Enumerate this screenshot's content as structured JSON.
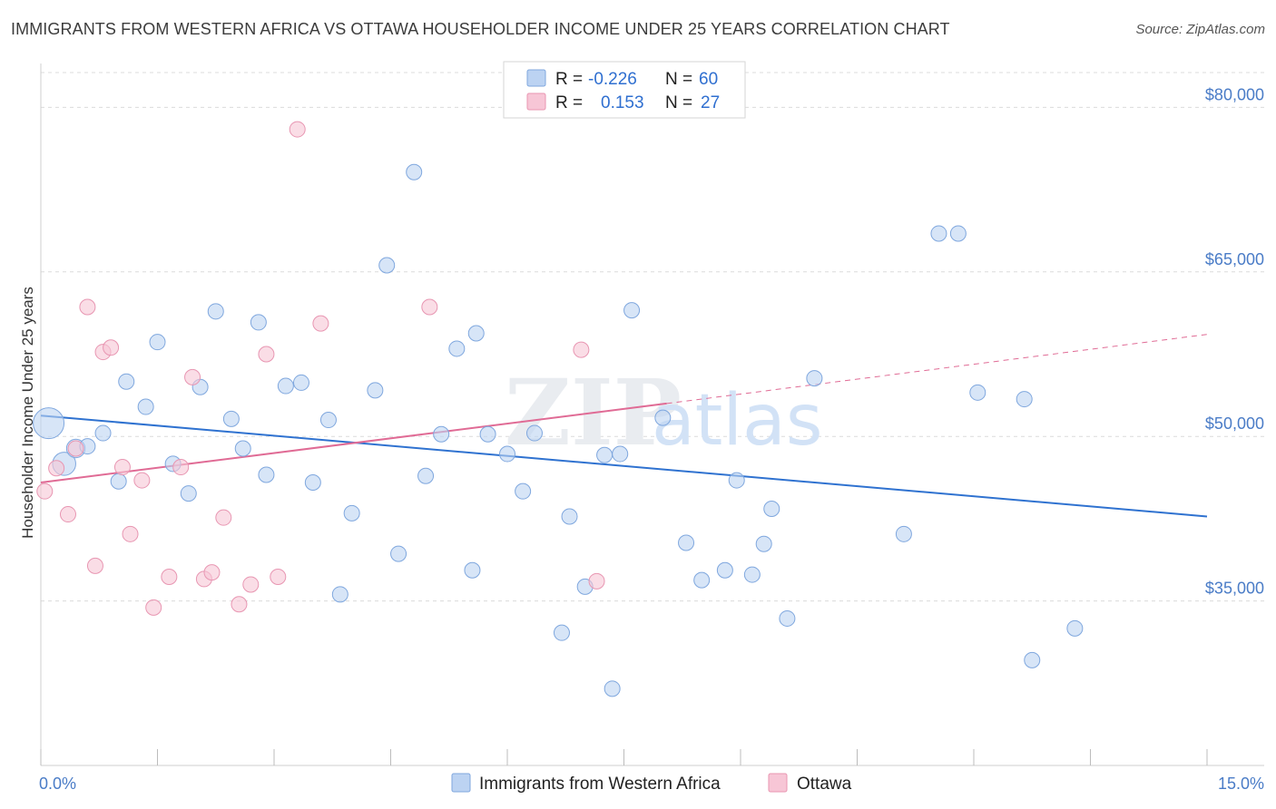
{
  "header": {
    "title": "IMMIGRANTS FROM WESTERN AFRICA VS OTTAWA HOUSEHOLDER INCOME UNDER 25 YEARS CORRELATION CHART",
    "source": "Source: ZipAtlas.com"
  },
  "watermark": {
    "zip": "ZIP",
    "atlas": "atlas"
  },
  "colors": {
    "blue_fill": "#bcd3f2",
    "blue_stroke": "#7fa7de",
    "blue_line": "#2f72d0",
    "pink_fill": "#f7c6d6",
    "pink_stroke": "#e896b2",
    "pink_line": "#e06b95",
    "grid": "#dcdcdc",
    "axis_text": "#4a7cc7"
  },
  "legend": {
    "r_label": "R =",
    "n_label": "N =",
    "rows": [
      {
        "r": "-0.226",
        "n": "60"
      },
      {
        "r": "0.153",
        "n": "27"
      }
    ]
  },
  "chart_data": {
    "type": "scatter",
    "title": "IMMIGRANTS FROM WESTERN AFRICA VS OTTAWA HOUSEHOLDER INCOME UNDER 25 YEARS CORRELATION CHART",
    "xlabel": "",
    "ylabel": "Householder Income Under 25 years",
    "xlim": [
      0,
      15
    ],
    "ylim": [
      20000,
      84000
    ],
    "x_tick_labels": [
      "0.0%",
      "15.0%"
    ],
    "y_ticks": [
      35000,
      50000,
      65000,
      80000
    ],
    "y_tick_labels": [
      "$35,000",
      "$50,000",
      "$65,000",
      "$80,000"
    ],
    "grid": true,
    "legend_position": "top-center",
    "series": [
      {
        "name": "Immigrants from Western Africa",
        "color": "#bcd3f2",
        "r": -0.226,
        "n": 60,
        "trend": {
          "x": [
            0,
            15
          ],
          "y": [
            51900,
            42700
          ]
        },
        "points": [
          [
            0.1,
            51200,
            2
          ],
          [
            0.3,
            47500,
            1.5
          ],
          [
            0.45,
            48900,
            1.2
          ],
          [
            0.6,
            49100,
            1
          ],
          [
            0.8,
            50300,
            1
          ],
          [
            1.0,
            45900,
            1
          ],
          [
            1.1,
            55000,
            1
          ],
          [
            1.35,
            52700,
            1
          ],
          [
            1.5,
            58600,
            1
          ],
          [
            1.7,
            47500,
            1
          ],
          [
            1.9,
            44800,
            1
          ],
          [
            2.05,
            54500,
            1
          ],
          [
            2.25,
            61400,
            1
          ],
          [
            2.45,
            51600,
            1
          ],
          [
            2.6,
            48900,
            1
          ],
          [
            2.8,
            60400,
            1
          ],
          [
            2.9,
            46500,
            1
          ],
          [
            3.15,
            54600,
            1
          ],
          [
            3.35,
            54900,
            1
          ],
          [
            3.5,
            45800,
            1
          ],
          [
            3.7,
            51500,
            1
          ],
          [
            3.85,
            35600,
            1
          ],
          [
            4.0,
            43000,
            1
          ],
          [
            4.3,
            54200,
            1
          ],
          [
            4.45,
            65600,
            1
          ],
          [
            4.6,
            39300,
            1
          ],
          [
            4.8,
            74100,
            1
          ],
          [
            4.95,
            46400,
            1
          ],
          [
            5.15,
            50200,
            1
          ],
          [
            5.35,
            58000,
            1
          ],
          [
            5.55,
            37800,
            1
          ],
          [
            5.6,
            59400,
            1
          ],
          [
            5.75,
            50200,
            1
          ],
          [
            6.0,
            48400,
            1
          ],
          [
            6.2,
            45000,
            1
          ],
          [
            6.35,
            50300,
            1
          ],
          [
            6.7,
            32100,
            1
          ],
          [
            6.8,
            42700,
            1
          ],
          [
            7.0,
            36300,
            1
          ],
          [
            7.25,
            48300,
            1
          ],
          [
            7.35,
            27000,
            1
          ],
          [
            7.45,
            48400,
            1
          ],
          [
            7.6,
            61500,
            1
          ],
          [
            8.0,
            51700,
            1
          ],
          [
            8.3,
            40300,
            1
          ],
          [
            8.5,
            36900,
            1
          ],
          [
            8.8,
            37800,
            1
          ],
          [
            8.95,
            46000,
            1
          ],
          [
            9.15,
            37400,
            1
          ],
          [
            9.3,
            40200,
            1
          ],
          [
            9.4,
            43400,
            1
          ],
          [
            9.6,
            33400,
            1
          ],
          [
            9.95,
            55300,
            1
          ],
          [
            11.1,
            41100,
            1
          ],
          [
            11.55,
            68500,
            1
          ],
          [
            11.8,
            68500,
            1
          ],
          [
            12.05,
            54000,
            1
          ],
          [
            12.65,
            53400,
            1
          ],
          [
            12.75,
            29600,
            1
          ],
          [
            13.3,
            32500,
            1
          ]
        ]
      },
      {
        "name": "Ottawa",
        "color": "#f7c6d6",
        "r": 0.153,
        "n": 27,
        "trend": {
          "x": [
            0,
            8.05
          ],
          "y": [
            45800,
            53000
          ]
        },
        "trend_extension": {
          "x": [
            8.05,
            15
          ],
          "y": [
            53000,
            59300
          ]
        },
        "points": [
          [
            0.05,
            45000,
            1
          ],
          [
            0.2,
            47100,
            1
          ],
          [
            0.35,
            42900,
            1
          ],
          [
            0.45,
            48900,
            1
          ],
          [
            0.6,
            61800,
            1
          ],
          [
            0.7,
            38200,
            1
          ],
          [
            0.8,
            57700,
            1
          ],
          [
            0.9,
            58100,
            1
          ],
          [
            1.05,
            47200,
            1
          ],
          [
            1.15,
            41100,
            1
          ],
          [
            1.3,
            46000,
            1
          ],
          [
            1.45,
            34400,
            1
          ],
          [
            1.65,
            37200,
            1
          ],
          [
            1.8,
            47200,
            1
          ],
          [
            1.95,
            55400,
            1
          ],
          [
            2.1,
            37000,
            1
          ],
          [
            2.2,
            37600,
            1
          ],
          [
            2.35,
            42600,
            1
          ],
          [
            2.55,
            34700,
            1
          ],
          [
            2.7,
            36500,
            1
          ],
          [
            2.9,
            57500,
            1
          ],
          [
            3.05,
            37200,
            1
          ],
          [
            3.3,
            78000,
            1
          ],
          [
            3.6,
            60300,
            1
          ],
          [
            5.0,
            61800,
            1
          ],
          [
            6.95,
            57900,
            1
          ],
          [
            7.15,
            36800,
            1
          ]
        ]
      }
    ]
  }
}
